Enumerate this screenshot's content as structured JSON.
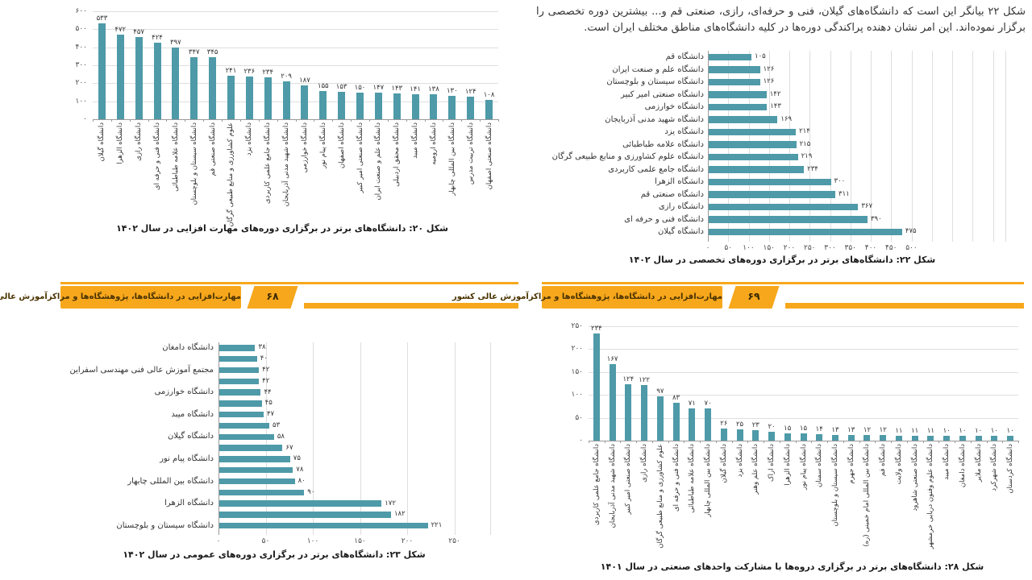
{
  "page": {
    "right_paragraph": "شکل ۲۲ بیانگر این است که دانشگاه‌های گیلان، فنی و حرفه‌ای، رازی، صنعتی قم و... بیشترین دوره تخصصی را برگزار نموده‌اند. این امر نشان دهنده پراکندگی دوره‌ها در کلیه دانشگاه‌های مناطق مختلف ایران است.",
    "banner_left": {
      "title": "مهارت‌افزایی در دانشگاه‌ها، پژوهشگاه‌ها و مراکزآموزش عالی کشور",
      "page_number": "۶۸"
    },
    "banner_right": {
      "title": "مهارت‌افزایی در دانشگاه‌ها، پژوهشگاه‌ها و مراکزآموزش عالی کشور",
      "page_number": "۶۹"
    }
  },
  "colors": {
    "bar": "#4e9aa8",
    "banner": "#f7a71c",
    "grid": "#dedede"
  },
  "chart_data": [
    {
      "type": "bar",
      "orientation": "vertical",
      "caption": "شکل ۲۰: دانشگاه‌های برتر در برگزاری دوره‌های مهارت افزایی در سال ۱۴۰۲",
      "categories": [
        "دانشگاه گیلان",
        "دانشگاه الزهرا",
        "دانشگاه رازی",
        "دانشگاه فنی و حرفه ای",
        "دانشگاه علامه طباطبائی",
        "دانشگاه سیستان و بلوچستان",
        "دانشگاه صنعتی قم",
        "علوم کشاورزی و منابع طبیعی گرگان",
        "دانشگاه یزد",
        "دانشگاه جامع علمی کاربردی",
        "دانشگاه شهید مدنی آذربایجان",
        "دانشگاه خوارزمی",
        "دانشگاه پیام نور",
        "دانشگاه اصفهان",
        "دانشگاه صنعتی امیر کبیر",
        "دانشگاه علم و صنعت ایران",
        "دانشگاه محقق اردبیلی",
        "دانشگاه میبد",
        "دانشگاه ارومیه",
        "دانشگاه بین المللی چابهار",
        "دانشگاه تربیت مدرس",
        "دانشگاه صنعتی اصفهان"
      ],
      "values": [
        533,
        472,
        457,
        424,
        397,
        347,
        345,
        241,
        236,
        234,
        209,
        187,
        155,
        153,
        150,
        147,
        143,
        141,
        138,
        130,
        124,
        108
      ],
      "ylim": [
        0,
        600
      ],
      "yticks": [
        0,
        100,
        200,
        300,
        400,
        500,
        600
      ],
      "grid": true,
      "legend": false
    },
    {
      "type": "bar",
      "orientation": "horizontal",
      "caption": "شکل ۲۲: دانشگاه‌های برتر در برگزاری دوره‌های تخصصی در سال ۱۴۰۲",
      "categories": [
        "دانشگاه قم",
        "دانشگاه علم و صنعت ایران",
        "دانشگاه سیستان و بلوچستان",
        "دانشگاه صنعتی امیر کبیر",
        "دانشگاه خوارزمی",
        "دانشگاه شهید مدنی آذربایجان",
        "دانشگاه یزد",
        "دانشگاه علامه طباطبائی",
        "دانشگاه علوم کشاورزی و منابع طبیعی گرگان",
        "دانشگاه جامع علمی کاربردی",
        "دانشگاه الزهرا",
        "دانشگاه صنعتی قم",
        "دانشگاه رازی",
        "دانشگاه فنی و حرفه ای",
        "دانشگاه گیلان"
      ],
      "values": [
        105,
        126,
        126,
        142,
        143,
        169,
        214,
        215,
        219,
        234,
        300,
        311,
        367,
        390,
        475
      ],
      "xlim": [
        0,
        500
      ],
      "xticks": [
        0,
        50,
        100,
        150,
        200,
        250,
        300,
        350,
        400,
        450,
        500
      ],
      "grid": true,
      "legend": false
    },
    {
      "type": "bar",
      "orientation": "horizontal",
      "caption": "شکل ۲۳: دانشگاه‌های برتر در برگزاری دوره‌های عمومی در سال ۱۴۰۲",
      "categories": [
        "دانشگاه دامغان",
        "",
        "مجتمع آموزش عالی فنی مهندسی اسفراین",
        "",
        "دانشگاه خوارزمی",
        "",
        "دانشگاه میبد",
        "",
        "دانشگاه گیلان",
        "",
        "دانشگاه پیام نور",
        "",
        "دانشگاه بین المللی چابهار",
        "",
        "دانشگاه الزهرا",
        "",
        "دانشگاه سیستان و بلوچستان"
      ],
      "values": [
        38,
        40,
        42,
        42,
        44,
        45,
        47,
        53,
        58,
        67,
        75,
        78,
        80,
        90,
        172,
        182,
        221
      ],
      "xlim": [
        0,
        250
      ],
      "xticks": [
        0,
        50,
        100,
        150,
        200,
        250
      ],
      "grid": true,
      "legend": false
    },
    {
      "type": "bar",
      "orientation": "vertical",
      "caption": "شکل ۲۸: دانشگاه‌های برتر در برگزاری دروه‌ها با مشارکت واحدهای صنعتی در سال ۱۴۰۱",
      "categories": [
        "دانشگاه جامع علمی کاربردی",
        "دانشگاه شهید مدنی آذربایجان",
        "دانشگاه صنعتی امیر کبیر",
        "دانشگاه رازی",
        "علوم کشاورزی و منابع طبیعی گرگان",
        "دانشگاه فنی و حرفه ای",
        "دانشگاه علامه طباطبائی",
        "دانشگاه بین المللی چابهار",
        "دانشگاه گیلان",
        "دانشگاه یزد",
        "دانشگاه علم وهنر",
        "دانشگاه اراک",
        "دانشگاه الزهرا",
        "دانشگاه پیام نور",
        "دانشگاه سمنان",
        "دانشگاه سیستان و بلوچستان",
        "دانشگاه جهرم",
        "دانشگاه بین المللی امام خمینی (ره)",
        "دانشگاه قم",
        "دانشگاه ولایت",
        "دانشگاه صنعتی شاهرود",
        "دانشگاه علوم وفنون دریایی خرمشهر",
        "دانشگاه میبد",
        "دانشگاه دامغان",
        "دانشگاه ملایر",
        "دانشگاه شهرکرد",
        "دانشگاه کردستان"
      ],
      "values": [
        234,
        167,
        124,
        122,
        97,
        83,
        71,
        70,
        26,
        25,
        23,
        20,
        15,
        15,
        14,
        13,
        13,
        12,
        12,
        11,
        11,
        11,
        10,
        10,
        10,
        10,
        10
      ],
      "ylim": [
        0,
        250
      ],
      "yticks": [
        0,
        50,
        100,
        150,
        200,
        250
      ],
      "grid": true,
      "legend": false
    }
  ]
}
